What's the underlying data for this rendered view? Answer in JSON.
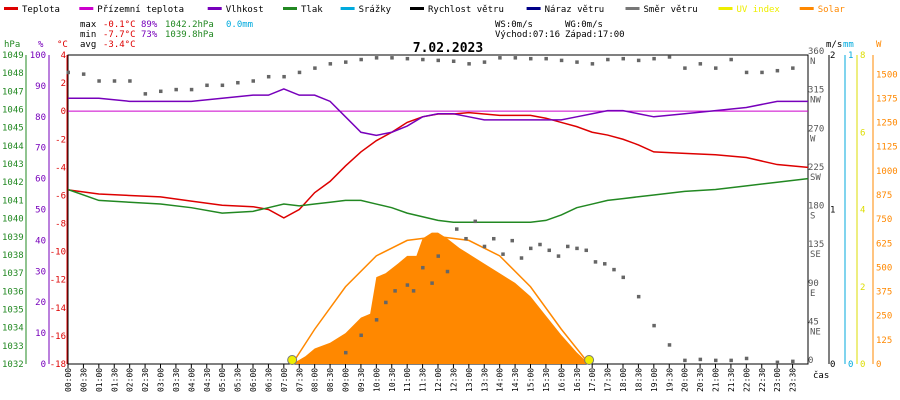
{
  "chart_data": {
    "type": "line",
    "title": "7.02.2023",
    "legend": [
      {
        "label": "Teplota",
        "color": "#dd0000"
      },
      {
        "label": "Přízemní teplota",
        "color": "#cc00cc"
      },
      {
        "label": "Vlhkost",
        "color": "#7700bb"
      },
      {
        "label": "Tlak",
        "color": "#228822"
      },
      {
        "label": "Srážky",
        "color": "#00aadd"
      },
      {
        "label": "Rychlost větru",
        "color": "#000000"
      },
      {
        "label": "Náraz větru",
        "color": "#000088"
      },
      {
        "label": "Směr větru",
        "color": "#777777"
      },
      {
        "label": "UV index",
        "color": "#eeee00"
      },
      {
        "label": "Solar",
        "color": "#ff8800"
      }
    ],
    "stats": {
      "max_label": "max",
      "max_temp": "-0.1°C",
      "max_hum": "89%",
      "max_press": "1042.2hPa",
      "rain": "0.0mm",
      "min_label": "min",
      "min_temp": "-7.7°C",
      "min_hum": "73%",
      "min_press": "1039.8hPa",
      "avg_label": "avg",
      "avg_temp": "-3.4°C",
      "ws": "WS:0m/s",
      "wg": "WG:0m/s",
      "sunrise": "Východ:07:16",
      "sunset": "Západ:17:00"
    },
    "axes": {
      "hpa": {
        "unit": "hPa",
        "ticks": [
          "1049",
          "1048",
          "1047",
          "1046",
          "1045",
          "1044",
          "1043",
          "1042",
          "1041",
          "1040",
          "1039",
          "1038",
          "1037",
          "1036",
          "1035",
          "1034",
          "1033",
          "1032"
        ],
        "range": [
          1032,
          1049
        ]
      },
      "hum": {
        "unit": "%",
        "ticks": [
          "100",
          "90",
          "80",
          "70",
          "60",
          "50",
          "40",
          "30",
          "20",
          "10",
          "0"
        ],
        "range": [
          0,
          100
        ]
      },
      "temp": {
        "unit": "°C",
        "ticks": [
          "4",
          "2",
          "0",
          "-2",
          "-4",
          "-6",
          "-8",
          "-10",
          "-12",
          "-14",
          "-16",
          "-18"
        ],
        "range": [
          -18,
          4
        ]
      },
      "dir": {
        "ticks": [
          {
            "deg": "360",
            "label": "N"
          },
          {
            "deg": "315",
            "label": "NW"
          },
          {
            "deg": "270",
            "label": "W"
          },
          {
            "deg": "225",
            "label": "SW"
          },
          {
            "deg": "180",
            "label": "S"
          },
          {
            "deg": "135",
            "label": "SE"
          },
          {
            "deg": "90",
            "label": "E"
          },
          {
            "deg": "45",
            "label": "NE"
          },
          {
            "deg": "0",
            "label": ""
          }
        ],
        "range": [
          0,
          360
        ]
      },
      "ms": {
        "unit": "m/s",
        "ticks": [
          "2",
          "1",
          "0"
        ],
        "range": [
          0,
          2
        ]
      },
      "mm": {
        "unit": "mm",
        "ticks": [
          "1",
          "0"
        ],
        "range": [
          0,
          1
        ]
      },
      "uv": {
        "ticks": [
          "8",
          "6",
          "4",
          "2",
          "0"
        ],
        "range": [
          0,
          8
        ]
      },
      "w": {
        "unit": "W",
        "ticks": [
          "1500",
          "1375",
          "1250",
          "1125",
          "1000",
          "875",
          "750",
          "625",
          "500",
          "375",
          "250",
          "125",
          "0"
        ],
        "range": [
          0,
          1600
        ]
      },
      "x_unit": "čas",
      "x_ticks": [
        "00:00",
        "00:30",
        "01:00",
        "01:30",
        "02:00",
        "02:30",
        "03:00",
        "03:30",
        "04:00",
        "04:30",
        "05:00",
        "05:30",
        "06:00",
        "06:30",
        "07:00",
        "07:30",
        "08:00",
        "08:30",
        "09:00",
        "09:30",
        "10:00",
        "10:30",
        "11:00",
        "11:30",
        "12:00",
        "12:30",
        "13:00",
        "13:30",
        "14:00",
        "14:30",
        "15:00",
        "15:30",
        "16:00",
        "16:30",
        "17:00",
        "17:30",
        "18:00",
        "18:30",
        "19:00",
        "19:30",
        "20:00",
        "20:30",
        "21:00",
        "21:30",
        "22:00",
        "22:30",
        "23:00",
        "23:30"
      ]
    },
    "hours": [
      0,
      1,
      2,
      3,
      4,
      5,
      6,
      6.5,
      7,
      7.5,
      8,
      8.5,
      9,
      9.5,
      10,
      10.5,
      11,
      11.5,
      12,
      12.5,
      13,
      13.5,
      14,
      14.5,
      15,
      15.5,
      16,
      16.5,
      17,
      17.5,
      18,
      18.5,
      19,
      20,
      21,
      22,
      23,
      24
    ],
    "series": [
      {
        "name": "Teplota",
        "color": "#dd0000",
        "axis": "temp",
        "values": [
          -5.6,
          -5.9,
          -6.0,
          -6.1,
          -6.4,
          -6.7,
          -6.8,
          -7.0,
          -7.6,
          -7.0,
          -5.8,
          -5.0,
          -3.9,
          -2.9,
          -2.1,
          -1.5,
          -0.8,
          -0.4,
          -0.2,
          -0.2,
          -0.1,
          -0.2,
          -0.3,
          -0.3,
          -0.3,
          -0.5,
          -0.8,
          -1.1,
          -1.5,
          -1.7,
          -2.0,
          -2.4,
          -2.9,
          -3.0,
          -3.1,
          -3.3,
          -3.8,
          -4.0
        ]
      },
      {
        "name": "Přízemní teplota",
        "color": "#cc00cc",
        "axis": "temp",
        "values": [
          0,
          0,
          0,
          0,
          0,
          0,
          0,
          0,
          0,
          0,
          0,
          0,
          0,
          0,
          0,
          0,
          0,
          0,
          0,
          0,
          0,
          0,
          0,
          0,
          0,
          0,
          0,
          0,
          0,
          0,
          0,
          0,
          0,
          0,
          0,
          0,
          0,
          0
        ]
      },
      {
        "name": "Vlhkost",
        "color": "#7700bb",
        "axis": "hum",
        "values": [
          86,
          86,
          85,
          85,
          85,
          86,
          87,
          87,
          89,
          87,
          87,
          85,
          80,
          75,
          74,
          75,
          77,
          80,
          81,
          81,
          80,
          79,
          79,
          79,
          79,
          79,
          79,
          80,
          81,
          82,
          82,
          81,
          80,
          81,
          82,
          83,
          85,
          85
        ]
      },
      {
        "name": "Tlak",
        "color": "#228822",
        "axis": "hpa",
        "values": [
          1041.6,
          1041.0,
          1040.9,
          1040.8,
          1040.6,
          1040.3,
          1040.4,
          1040.6,
          1040.8,
          1040.7,
          1040.8,
          1040.9,
          1041.0,
          1041.0,
          1040.8,
          1040.6,
          1040.3,
          1040.1,
          1039.9,
          1039.8,
          1039.8,
          1039.8,
          1039.8,
          1039.8,
          1039.8,
          1039.9,
          1040.2,
          1040.6,
          1040.8,
          1041.0,
          1041.1,
          1041.2,
          1041.3,
          1041.5,
          1041.6,
          1041.8,
          1042.0,
          1042.2
        ]
      },
      {
        "name": "Směr větru",
        "color": "#666666",
        "axis": "dir",
        "type": "scatter",
        "x": [
          0,
          0.5,
          1,
          1.5,
          2,
          2.5,
          3,
          3.5,
          4,
          4.5,
          5,
          5.5,
          6,
          6.5,
          7,
          7.5,
          8,
          8.5,
          9,
          9.5,
          10,
          10.5,
          11,
          11.5,
          12,
          12.5,
          13,
          13.5,
          14,
          14.5,
          15,
          15.5,
          16,
          16.5,
          17,
          17.5,
          18,
          18.5,
          19,
          19.5,
          20,
          20.5,
          21,
          21.5,
          22,
          22.5,
          23,
          23.5
        ],
        "y": [
          340,
          338,
          330,
          330,
          330,
          315,
          318,
          320,
          320,
          325,
          325,
          328,
          330,
          335,
          335,
          340,
          345,
          350,
          352,
          355,
          357,
          357,
          356,
          355,
          354,
          353,
          350,
          352,
          357,
          357,
          356,
          356,
          354,
          352,
          350,
          355,
          356,
          354,
          356,
          358,
          345,
          350,
          345,
          355,
          340,
          340,
          342,
          345
        ]
      },
      {
        "name": "Solar",
        "color": "#ff8800",
        "axis": "w",
        "type": "area",
        "x": [
          7.27,
          7.7,
          8.0,
          8.5,
          9.0,
          9.5,
          9.8,
          10.0,
          10.3,
          10.7,
          11.0,
          11.3,
          11.5,
          11.8,
          12.0,
          12.3,
          12.7,
          13.0,
          13.5,
          14.0,
          14.5,
          15.0,
          15.5,
          16.0,
          16.5,
          16.9
        ],
        "y": [
          0,
          40,
          80,
          110,
          160,
          240,
          260,
          450,
          470,
          520,
          560,
          560,
          650,
          680,
          680,
          650,
          600,
          570,
          520,
          470,
          420,
          350,
          250,
          150,
          60,
          0
        ]
      },
      {
        "name": "Solar max",
        "color": "#ff8800",
        "axis": "w",
        "type": "curve",
        "x": [
          7.27,
          8,
          9,
          10,
          11,
          12,
          13,
          14,
          15,
          16,
          16.9
        ],
        "y": [
          0,
          180,
          400,
          560,
          640,
          660,
          640,
          560,
          400,
          180,
          0
        ]
      },
      {
        "name": "Solar scatter",
        "color": "#666666",
        "axis": "w",
        "type": "scatter",
        "x": [
          9.0,
          9.5,
          10.0,
          10.3,
          10.6,
          11.0,
          11.2,
          11.5,
          11.8,
          12.0,
          12.3,
          12.6,
          12.9,
          13.2,
          13.5,
          13.8,
          14.1,
          14.4,
          14.7,
          15.0,
          15.3,
          15.6,
          15.9,
          16.2,
          16.5,
          16.8,
          17.1,
          17.4,
          17.7,
          18.0,
          18.5,
          19.0,
          19.5,
          20.0,
          20.5,
          21.0,
          21.5,
          22.0,
          23.0,
          23.5
        ],
        "y": [
          60,
          150,
          230,
          320,
          380,
          410,
          380,
          500,
          420,
          560,
          480,
          700,
          650,
          740,
          610,
          650,
          570,
          640,
          550,
          600,
          620,
          590,
          560,
          610,
          600,
          590,
          530,
          520,
          490,
          450,
          350,
          200,
          100,
          20,
          25,
          20,
          20,
          30,
          10,
          15
        ]
      }
    ],
    "uv_markers": [
      {
        "label": "",
        "x": 7.27
      },
      {
        "label": "",
        "x": 16.9
      }
    ]
  }
}
